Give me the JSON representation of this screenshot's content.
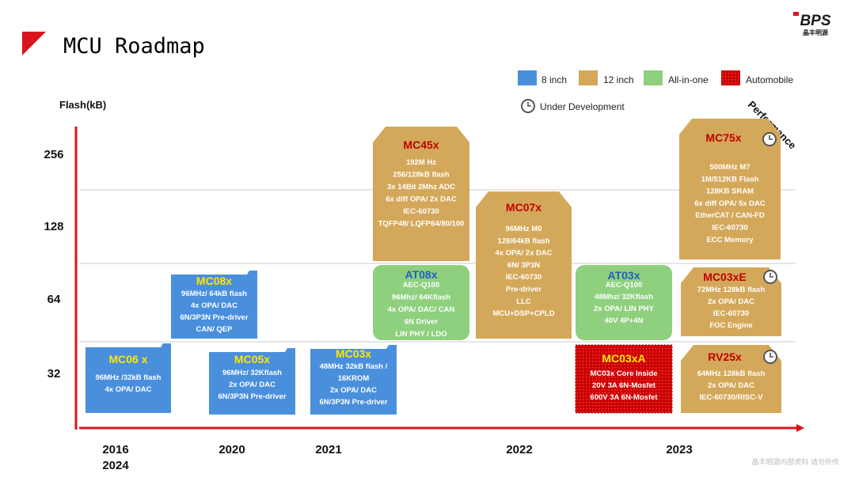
{
  "header": {
    "title": "MCU Roadmap",
    "logo": "BPS",
    "logo_subtitle": "晶丰明源"
  },
  "legend": [
    "8 inch",
    "12 inch",
    "All-in-one",
    "Automobile"
  ],
  "under_development": "Under Development",
  "axis": {
    "y_label": "Flash(kB)",
    "y_levels": [
      256,
      128,
      64,
      32
    ],
    "x_label": "Performance",
    "years": [
      "2016",
      "2024",
      "2020",
      "2021",
      "2022",
      "2023"
    ]
  },
  "cards": [
    {
      "name": "MC06 x",
      "lines": [
        "96MHz /32kB flash",
        "4x OPA/ DAC"
      ]
    },
    {
      "name": "MC08x",
      "lines": [
        "96MHz/ 64kB flash",
        "4x OPA/ DAC",
        "6N/3P3N Pre-driver",
        "CAN/ QEP"
      ]
    },
    {
      "name": "MC05x",
      "lines": [
        "96MHz/ 32Kflash",
        "2x OPA/ DAC",
        "6N/3P3N Pre-driver"
      ]
    },
    {
      "name": "MC03x",
      "lines": [
        "48MHz  32kB flash /",
        "16KROM",
        "2x OPA/ DAC",
        "6N/3P3N Pre-driver"
      ]
    },
    {
      "name": "MC45x",
      "lines": [
        "192M Hz",
        "256/128kB flash",
        "3x 14Bit 2Mhz ADC",
        "6x diff OPA/ 2x DAC",
        "IEC-60730",
        "TQFP48/ LQFP64/80/100"
      ]
    },
    {
      "name": "AT08x",
      "lines": [
        "AEC-Q100",
        "96Mhz/ 64Kflash",
        "4x OPA/ DAC/ CAN",
        "6N Driver",
        "LIN  PHY /    LDO"
      ]
    },
    {
      "name": "MC07x",
      "lines": [
        "96MHz   M0",
        "128/64kB flash",
        "4x OPA/ 2x DAC",
        "6N/ 3P3N",
        "IEC-60730",
        "Pre-driver",
        "LLC",
        "MCU+DSP+CPLD"
      ]
    },
    {
      "name": "AT03x",
      "lines": [
        "AEC-Q100",
        "48Mhz/ 32Kflash",
        "2x OPA/ LIN  PHY",
        "40V 4P+4N"
      ]
    },
    {
      "name": "MC03xA",
      "lines": [
        "MC03x Core Inside",
        "20V 3A 6N-Mosfet",
        "600V 3A 6N-Mosfet"
      ]
    },
    {
      "name": "MC75x",
      "lines": [
        "500MHz M7",
        "1M/512KB   Flash",
        "128KB SRAM",
        "6x diff OPA/ 5x DAC",
        "EtherCAT / CAN-FD",
        "IEC-60730",
        "ECC Memory"
      ]
    },
    {
      "name": "MC03xE",
      "lines": [
        "72MHz 128kB flash",
        "2x OPA/ DAC",
        "IEC-60730",
        "FOC Engine"
      ]
    },
    {
      "name": "RV25x",
      "lines": [
        "64MHz 128kB flash",
        "2x OPA/ DAC",
        "IEC-60730/RISC-V"
      ]
    }
  ],
  "watermark": "晶丰明源内部资料 请勿外传"
}
